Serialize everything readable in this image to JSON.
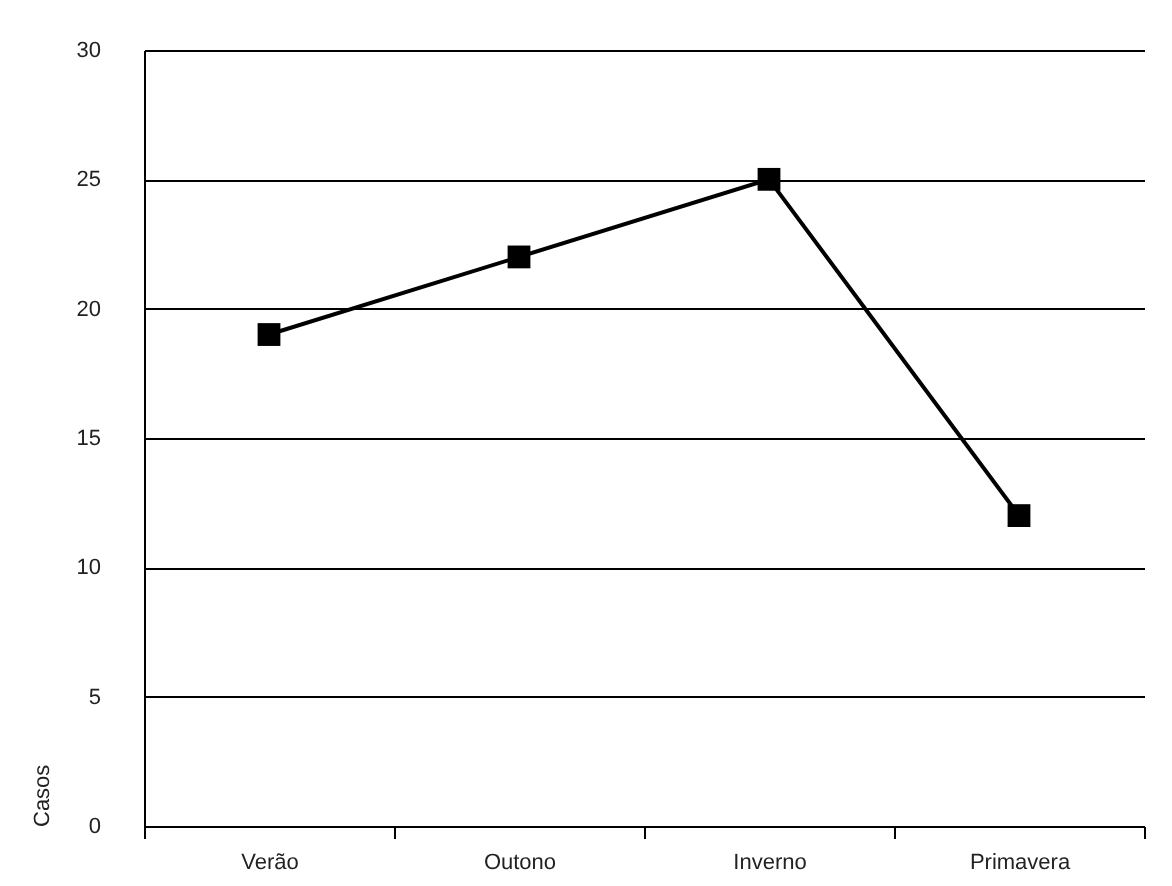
{
  "chart_data": {
    "type": "line",
    "ylabel": "Casos",
    "categories": [
      "Verão",
      "Outono",
      "Inverno",
      "Primavera"
    ],
    "series": [
      {
        "color": "#000000",
        "values": [
          19,
          22,
          25,
          12
        ]
      }
    ],
    "ylim": [
      0,
      30
    ],
    "yticks": [
      0,
      5,
      10,
      15,
      20,
      25,
      30
    ],
    "grid": "y",
    "marker": "square",
    "line_style": "solid"
  }
}
